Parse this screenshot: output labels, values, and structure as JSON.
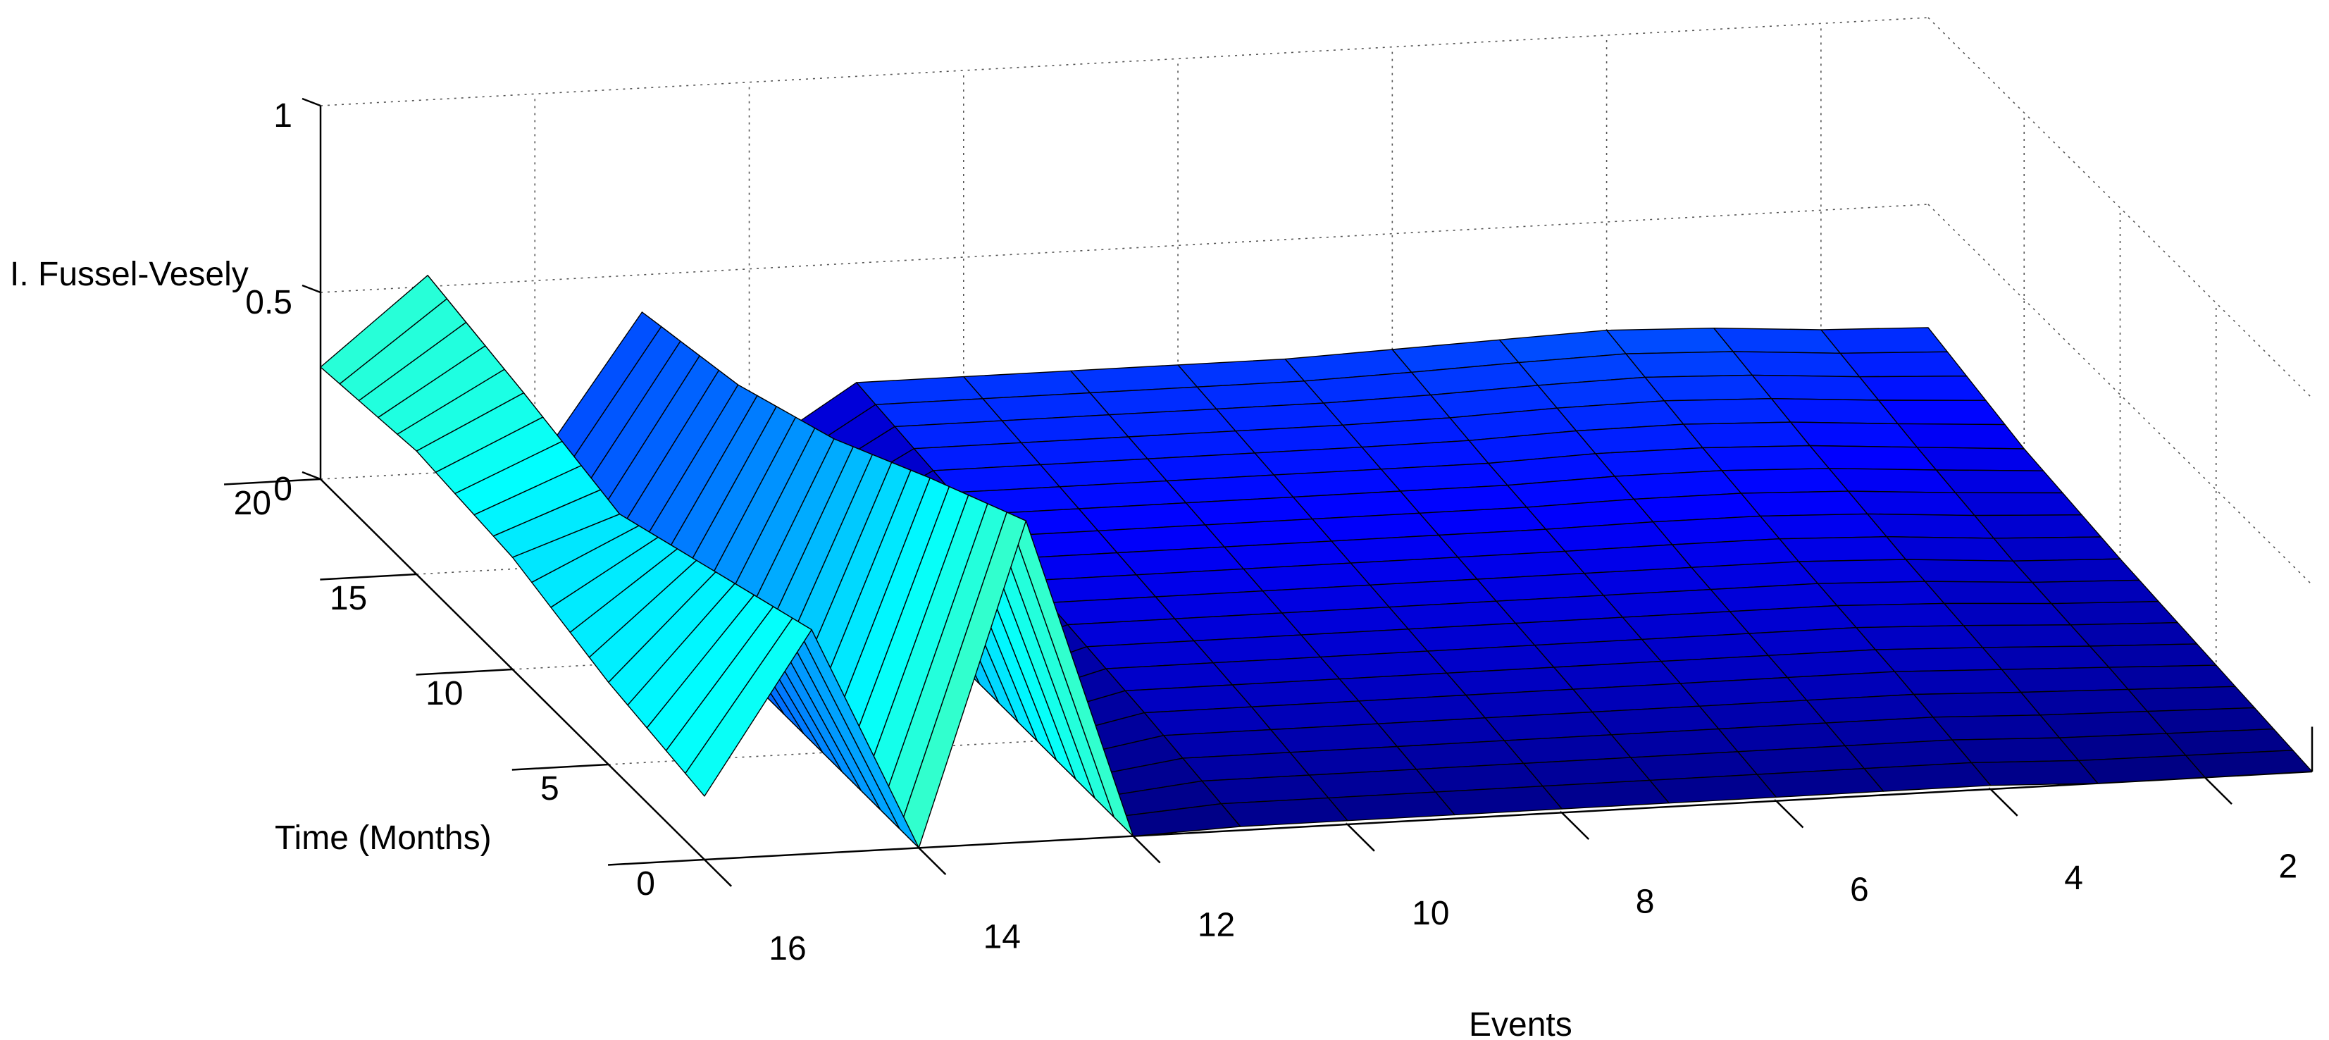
{
  "chart_data": {
    "type": "surface",
    "title": "",
    "xlabel": "Events",
    "ylabel": "Time (Months)",
    "zlabel": "I. Fussel-Vesely",
    "colormap": "jet",
    "xlim": [
      1,
      16
    ],
    "ylim": [
      0,
      20
    ],
    "zlim": [
      0,
      1
    ],
    "x_ticks": [
      "2",
      "4",
      "6",
      "8",
      "10",
      "12",
      "14",
      "16"
    ],
    "y_ticks": [
      "0",
      "5",
      "10",
      "15",
      "20"
    ],
    "z_ticks": [
      "0",
      "0.5",
      "1"
    ],
    "grid": true,
    "events": [
      1,
      2,
      3,
      4,
      5,
      6,
      7,
      8,
      9,
      10,
      11,
      12,
      13,
      14,
      15,
      16
    ],
    "time_months": [
      0,
      5,
      10,
      15,
      20
    ],
    "series": [
      {
        "event": 1,
        "values": [
          0.0,
          0.03,
          0.06,
          0.1,
          0.17
        ]
      },
      {
        "event": 2,
        "values": [
          0.0,
          0.04,
          0.07,
          0.12,
          0.18
        ]
      },
      {
        "event": 3,
        "values": [
          0.0,
          0.05,
          0.09,
          0.14,
          0.2
        ]
      },
      {
        "event": 4,
        "values": [
          0.01,
          0.06,
          0.1,
          0.15,
          0.21
        ]
      },
      {
        "event": 5,
        "values": [
          0.01,
          0.06,
          0.1,
          0.15,
          0.2
        ]
      },
      {
        "event": 6,
        "values": [
          0.01,
          0.06,
          0.1,
          0.14,
          0.19
        ]
      },
      {
        "event": 7,
        "values": [
          0.01,
          0.06,
          0.1,
          0.14,
          0.18
        ]
      },
      {
        "event": 8,
        "values": [
          0.01,
          0.06,
          0.1,
          0.14,
          0.18
        ]
      },
      {
        "event": 9,
        "values": [
          0.01,
          0.06,
          0.1,
          0.14,
          0.18
        ]
      },
      {
        "event": 10,
        "values": [
          0.01,
          0.06,
          0.1,
          0.14,
          0.18
        ]
      },
      {
        "event": 11,
        "values": [
          0.01,
          0.06,
          0.1,
          0.14,
          0.18
        ]
      },
      {
        "event": 12,
        "values": [
          0.0,
          0.0,
          0.0,
          0.0,
          0.0
        ]
      },
      {
        "event": 13,
        "values": [
          0.86,
          0.72,
          0.57,
          0.46,
          0.4
        ]
      },
      {
        "event": 14,
        "values": [
          0.0,
          0.0,
          0.0,
          0.0,
          0.0
        ]
      },
      {
        "event": 15,
        "values": [
          0.6,
          0.5,
          0.4,
          0.47,
          0.53
        ]
      },
      {
        "event": 16,
        "values": [
          0.17,
          0.22,
          0.3,
          0.33,
          0.3
        ]
      }
    ]
  }
}
